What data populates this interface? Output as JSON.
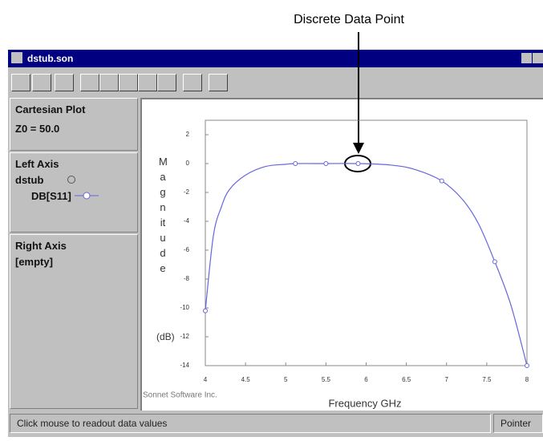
{
  "annotation": "Discrete Data Point",
  "window": {
    "title": "dstub.son"
  },
  "left_panel": {
    "plot_type": "Cartesian Plot",
    "z0": "Z0 = 50.0",
    "left_axis": "Left Axis",
    "file": "dstub",
    "right_axis": "Right Axis",
    "right_contents": "[empty]"
  },
  "status": {
    "message": "Click mouse to readout data values",
    "mode": "Pointer"
  },
  "chart_data": {
    "type": "line",
    "y_label": "Magnitude",
    "y_unit": "(dB)",
    "x_label": "Frequency GHz",
    "credit": "Sonnet Software Inc.",
    "series": [
      {
        "name": "DB[S11]",
        "color": "#6666dd",
        "x": [
          4,
          4.1,
          4.2,
          4.3,
          4.5,
          4.75,
          5,
          5.12,
          5.5,
          5.9,
          6.3,
          6.6,
          6.94,
          7.2,
          7.4,
          7.6,
          7.8,
          8
        ],
        "values": [
          -10.2,
          -5,
          -3,
          -1.8,
          -0.8,
          -0.2,
          -0.05,
          0,
          0,
          0,
          -0.1,
          -0.4,
          -1.2,
          -2.5,
          -4.2,
          -6.8,
          -9.8,
          -14
        ]
      }
    ],
    "markers": {
      "x": [
        4,
        5.12,
        5.5,
        5.9,
        6.94,
        7.6,
        8
      ],
      "values": [
        -10.2,
        0,
        0,
        0,
        -1.2,
        -6.8,
        -14
      ]
    },
    "xlim": [
      4,
      8
    ],
    "ylim": [
      -14,
      3
    ],
    "xticks": [
      4,
      4.5,
      5,
      5.5,
      6,
      6.5,
      7,
      7.5,
      8
    ],
    "yticks": [
      2,
      0,
      -2,
      -4,
      -6,
      -8,
      -10,
      -12,
      -14
    ]
  }
}
